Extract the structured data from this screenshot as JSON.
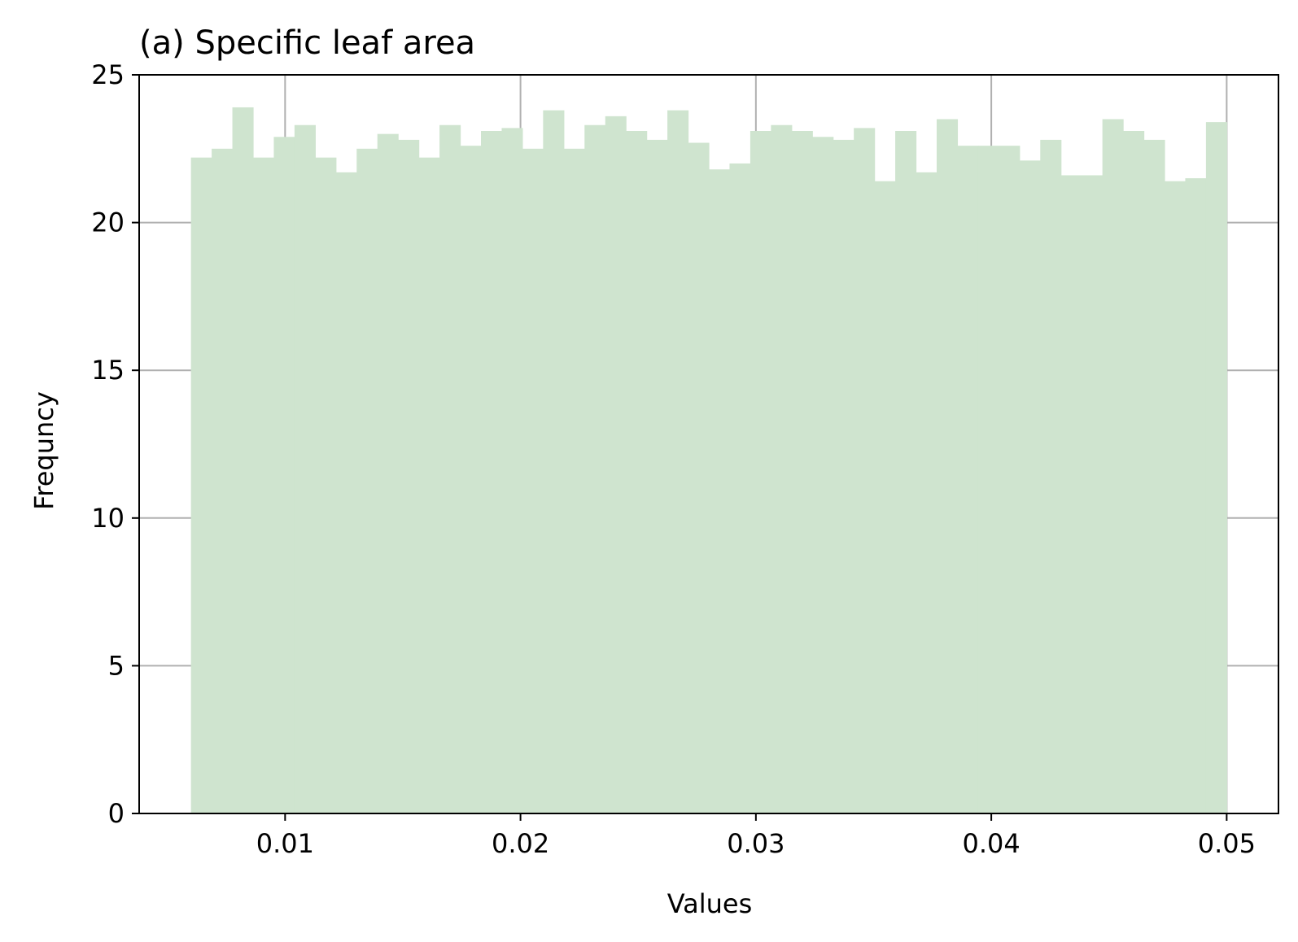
{
  "chart_data": {
    "type": "bar",
    "title": "(a) Specific leaf area",
    "xlabel": "Values",
    "ylabel": "Frequncy",
    "xlim": [
      0.0038,
      0.0522
    ],
    "ylim": [
      0,
      25
    ],
    "xticks": [
      0.01,
      0.02,
      0.03,
      0.04,
      0.05
    ],
    "xtick_labels": [
      "0.01",
      "0.02",
      "0.03",
      "0.04",
      "0.05"
    ],
    "yticks": [
      0,
      5,
      10,
      15,
      20,
      25
    ],
    "ytick_labels": [
      "0",
      "5",
      "10",
      "15",
      "20",
      "25"
    ],
    "grid": true,
    "bar_color": "#cfe4cf",
    "bin_start": 0.006,
    "bin_end": 0.05,
    "values": [
      22.2,
      22.5,
      23.9,
      22.2,
      22.9,
      23.3,
      22.2,
      21.7,
      22.5,
      23.0,
      22.8,
      22.2,
      23.3,
      22.6,
      23.1,
      23.2,
      22.5,
      23.8,
      22.5,
      23.3,
      23.6,
      23.1,
      22.8,
      23.8,
      22.7,
      21.8,
      22.0,
      23.1,
      23.3,
      23.1,
      22.9,
      22.8,
      23.2,
      21.4,
      23.1,
      21.7,
      23.5,
      22.6,
      22.6,
      22.6,
      22.1,
      22.8,
      21.6,
      21.6,
      23.5,
      23.1,
      22.8,
      21.4,
      21.5,
      23.4
    ]
  }
}
